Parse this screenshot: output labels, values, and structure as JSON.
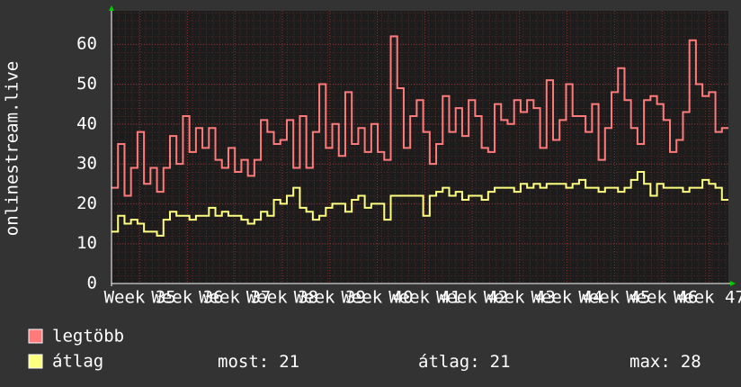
{
  "chart_data": {
    "type": "step-line",
    "y_label": "onlinestream.live",
    "ylim": [
      0,
      68.4
    ],
    "yticks": [
      0,
      10,
      20,
      30,
      40,
      50,
      60
    ],
    "xlim": [
      34.4,
      47.4
    ],
    "xticks": [
      {
        "value": 35,
        "label": "Week 35"
      },
      {
        "value": 36,
        "label": "Week 36"
      },
      {
        "value": 37,
        "label": "Week 37"
      },
      {
        "value": 38,
        "label": "Week 38"
      },
      {
        "value": 39,
        "label": "Week 39"
      },
      {
        "value": 40,
        "label": "Week 40"
      },
      {
        "value": 41,
        "label": "Week 41"
      },
      {
        "value": 42,
        "label": "Week 42"
      },
      {
        "value": 43,
        "label": "Week 43"
      },
      {
        "value": 44,
        "label": "Week 44"
      },
      {
        "value": 45,
        "label": "Week 45"
      },
      {
        "value": 46,
        "label": "Week 46"
      },
      {
        "value": 47,
        "label": "Week 47"
      }
    ],
    "grid": true,
    "series": [
      {
        "name": "legtöbb",
        "color": "#ff7b7b",
        "values": [
          24,
          35,
          22,
          29,
          38,
          25,
          29,
          23,
          29,
          37,
          30,
          42,
          33,
          39,
          34,
          39,
          31,
          29,
          34,
          28,
          31,
          27,
          31,
          41,
          38,
          35,
          36,
          41,
          29,
          42,
          29,
          38,
          50,
          34,
          40,
          32,
          48,
          35,
          39,
          33,
          40,
          33,
          31,
          62,
          49,
          34,
          42,
          46,
          38,
          30,
          35,
          47,
          38,
          44,
          37,
          46,
          42,
          34,
          33,
          45,
          41,
          40,
          46,
          43,
          46,
          44,
          34,
          51,
          36,
          41,
          50,
          42,
          42,
          38,
          45,
          31,
          39,
          48,
          54,
          46,
          39,
          35,
          46,
          47,
          45,
          41,
          33,
          36,
          43,
          61,
          50,
          47,
          48,
          38,
          39
        ]
      },
      {
        "name": "átlag",
        "color": "#ffff80",
        "values": [
          13,
          17,
          15,
          16,
          15,
          13,
          13,
          12,
          16,
          18,
          17,
          17,
          16,
          17,
          17,
          19,
          17,
          18,
          17,
          17,
          16,
          15,
          16,
          18,
          17,
          21,
          20,
          22,
          24,
          19,
          18,
          16,
          17,
          19,
          20,
          20,
          18,
          21,
          22,
          19,
          20,
          20,
          16,
          22,
          22,
          22,
          22,
          22,
          17,
          22,
          23,
          24,
          22,
          23,
          21,
          22,
          22,
          21,
          23,
          24,
          24,
          24,
          23,
          25,
          24,
          25,
          24,
          25,
          25,
          25,
          24,
          25,
          26,
          24,
          24,
          23,
          24,
          24,
          23,
          24,
          26,
          28,
          25,
          22,
          25,
          24,
          24,
          24,
          23,
          24,
          24,
          26,
          25,
          24,
          21
        ]
      }
    ],
    "stats": [
      {
        "label": "most:",
        "value": 21
      },
      {
        "label": "átlag:",
        "value": 21
      },
      {
        "label": "max:",
        "value": 28
      }
    ]
  }
}
